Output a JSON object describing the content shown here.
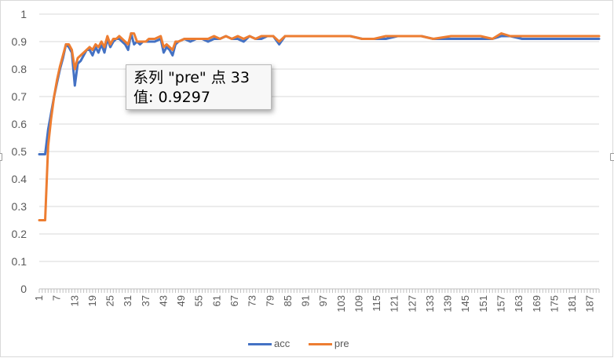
{
  "chart_data": {
    "type": "line",
    "title": "",
    "xlabel": "",
    "ylabel": "",
    "ylim": [
      0,
      1
    ],
    "yticks": [
      "0",
      "0.1",
      "0.2",
      "0.3",
      "0.4",
      "0.5",
      "0.6",
      "0.7",
      "0.8",
      "0.9",
      "1"
    ],
    "x_range": [
      1,
      190
    ],
    "x_tick_labels": [
      "1",
      "7",
      "13",
      "19",
      "25",
      "31",
      "37",
      "43",
      "49",
      "55",
      "61",
      "67",
      "73",
      "79",
      "85",
      "91",
      "97",
      "103",
      "109",
      "115",
      "121",
      "127",
      "133",
      "139",
      "145",
      "151",
      "157",
      "163",
      "169",
      "175",
      "181",
      "187"
    ],
    "grid": true,
    "legend_position": "bottom",
    "series": [
      {
        "name": "acc",
        "color": "#4472c4",
        "points": [
          [
            1,
            0.49
          ],
          [
            3,
            0.49
          ],
          [
            4,
            0.58
          ],
          [
            5,
            0.64
          ],
          [
            6,
            0.7
          ],
          [
            7,
            0.75
          ],
          [
            8,
            0.8
          ],
          [
            9,
            0.84
          ],
          [
            10,
            0.89
          ],
          [
            11,
            0.88
          ],
          [
            12,
            0.86
          ],
          [
            13,
            0.74
          ],
          [
            14,
            0.82
          ],
          [
            15,
            0.83
          ],
          [
            16,
            0.85
          ],
          [
            17,
            0.87
          ],
          [
            18,
            0.87
          ],
          [
            19,
            0.85
          ],
          [
            20,
            0.88
          ],
          [
            21,
            0.86
          ],
          [
            22,
            0.89
          ],
          [
            23,
            0.86
          ],
          [
            24,
            0.91
          ],
          [
            25,
            0.88
          ],
          [
            26,
            0.9
          ],
          [
            27,
            0.91
          ],
          [
            28,
            0.91
          ],
          [
            29,
            0.9
          ],
          [
            30,
            0.89
          ],
          [
            31,
            0.87
          ],
          [
            32,
            0.93
          ],
          [
            33,
            0.89
          ],
          [
            34,
            0.9
          ],
          [
            35,
            0.89
          ],
          [
            36,
            0.9
          ],
          [
            37,
            0.9
          ],
          [
            38,
            0.9
          ],
          [
            40,
            0.9
          ],
          [
            42,
            0.91
          ],
          [
            43,
            0.86
          ],
          [
            44,
            0.88
          ],
          [
            45,
            0.87
          ],
          [
            46,
            0.85
          ],
          [
            47,
            0.89
          ],
          [
            48,
            0.9
          ],
          [
            50,
            0.91
          ],
          [
            52,
            0.9
          ],
          [
            54,
            0.91
          ],
          [
            56,
            0.91
          ],
          [
            58,
            0.9
          ],
          [
            60,
            0.91
          ],
          [
            62,
            0.91
          ],
          [
            64,
            0.92
          ],
          [
            66,
            0.91
          ],
          [
            68,
            0.91
          ],
          [
            70,
            0.9
          ],
          [
            72,
            0.92
          ],
          [
            74,
            0.91
          ],
          [
            76,
            0.91
          ],
          [
            78,
            0.92
          ],
          [
            80,
            0.92
          ],
          [
            82,
            0.89
          ],
          [
            84,
            0.92
          ],
          [
            86,
            0.92
          ],
          [
            90,
            0.92
          ],
          [
            94,
            0.92
          ],
          [
            98,
            0.92
          ],
          [
            102,
            0.92
          ],
          [
            106,
            0.92
          ],
          [
            110,
            0.91
          ],
          [
            114,
            0.91
          ],
          [
            118,
            0.91
          ],
          [
            122,
            0.92
          ],
          [
            130,
            0.92
          ],
          [
            134,
            0.91
          ],
          [
            140,
            0.91
          ],
          [
            150,
            0.91
          ],
          [
            154,
            0.91
          ],
          [
            157,
            0.92
          ],
          [
            160,
            0.92
          ],
          [
            164,
            0.91
          ],
          [
            170,
            0.91
          ],
          [
            180,
            0.91
          ],
          [
            190,
            0.91
          ]
        ]
      },
      {
        "name": "pre",
        "color": "#ed7d31",
        "points": [
          [
            1,
            0.25
          ],
          [
            3,
            0.25
          ],
          [
            4,
            0.52
          ],
          [
            5,
            0.62
          ],
          [
            6,
            0.7
          ],
          [
            7,
            0.76
          ],
          [
            8,
            0.81
          ],
          [
            9,
            0.85
          ],
          [
            10,
            0.89
          ],
          [
            11,
            0.89
          ],
          [
            12,
            0.87
          ],
          [
            13,
            0.8
          ],
          [
            14,
            0.84
          ],
          [
            15,
            0.85
          ],
          [
            16,
            0.86
          ],
          [
            17,
            0.87
          ],
          [
            18,
            0.88
          ],
          [
            19,
            0.87
          ],
          [
            20,
            0.89
          ],
          [
            21,
            0.88
          ],
          [
            22,
            0.9
          ],
          [
            23,
            0.88
          ],
          [
            24,
            0.92
          ],
          [
            25,
            0.89
          ],
          [
            26,
            0.91
          ],
          [
            27,
            0.91
          ],
          [
            28,
            0.92
          ],
          [
            29,
            0.91
          ],
          [
            30,
            0.9
          ],
          [
            31,
            0.89
          ],
          [
            32,
            0.93
          ],
          [
            33,
            0.9297
          ],
          [
            34,
            0.9
          ],
          [
            35,
            0.9
          ],
          [
            36,
            0.9
          ],
          [
            37,
            0.9
          ],
          [
            38,
            0.91
          ],
          [
            40,
            0.91
          ],
          [
            42,
            0.92
          ],
          [
            43,
            0.88
          ],
          [
            44,
            0.89
          ],
          [
            45,
            0.88
          ],
          [
            46,
            0.87
          ],
          [
            47,
            0.9
          ],
          [
            48,
            0.9
          ],
          [
            50,
            0.91
          ],
          [
            52,
            0.91
          ],
          [
            54,
            0.91
          ],
          [
            56,
            0.91
          ],
          [
            58,
            0.91
          ],
          [
            60,
            0.92
          ],
          [
            62,
            0.91
          ],
          [
            64,
            0.92
          ],
          [
            66,
            0.91
          ],
          [
            68,
            0.92
          ],
          [
            70,
            0.91
          ],
          [
            72,
            0.92
          ],
          [
            74,
            0.91
          ],
          [
            76,
            0.92
          ],
          [
            78,
            0.92
          ],
          [
            80,
            0.92
          ],
          [
            82,
            0.9
          ],
          [
            84,
            0.92
          ],
          [
            86,
            0.92
          ],
          [
            90,
            0.92
          ],
          [
            94,
            0.92
          ],
          [
            98,
            0.92
          ],
          [
            102,
            0.92
          ],
          [
            106,
            0.92
          ],
          [
            110,
            0.91
          ],
          [
            114,
            0.91
          ],
          [
            118,
            0.92
          ],
          [
            122,
            0.92
          ],
          [
            130,
            0.92
          ],
          [
            134,
            0.91
          ],
          [
            140,
            0.92
          ],
          [
            150,
            0.92
          ],
          [
            154,
            0.91
          ],
          [
            157,
            0.93
          ],
          [
            160,
            0.92
          ],
          [
            164,
            0.92
          ],
          [
            170,
            0.92
          ],
          [
            180,
            0.92
          ],
          [
            190,
            0.92
          ]
        ]
      }
    ]
  },
  "tooltip": {
    "line1": "系列 \"pre\" 点 33",
    "line2": "值: 0.9297"
  }
}
